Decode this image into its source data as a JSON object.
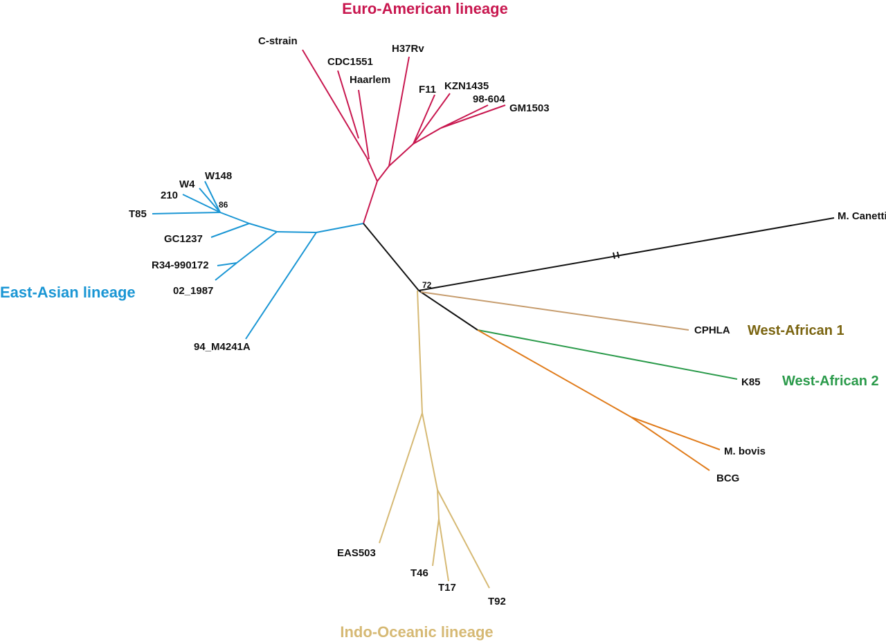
{
  "lineages": {
    "euro_american": "Euro-American lineage",
    "east_asian": "East-Asian lineage",
    "indo_oceanic": "Indo-Oceanic lineage",
    "west_african_1": "West-African 1",
    "west_african_2": "West-African 2"
  },
  "leaves": [
    "C-strain",
    "CDC1551",
    "Haarlem",
    "H37Rv",
    "F11",
    "KZN1435",
    "98-604",
    "GM1503",
    "W148",
    "W4",
    "210",
    "T85",
    "GC1237",
    "R34-990172",
    "02_1987",
    "94_M4241A",
    "M. Canettii",
    "CPHLA",
    "K85",
    "M. bovis",
    "BCG",
    "EAS503",
    "T46",
    "T17",
    "T92"
  ],
  "bootstrap": [
    "86",
    "72"
  ]
}
